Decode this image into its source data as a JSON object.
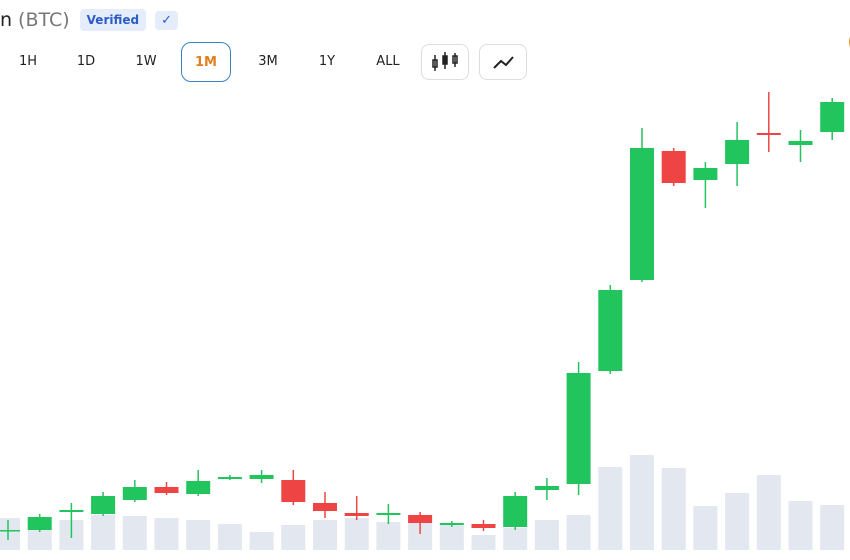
{
  "header": {
    "title": "n",
    "ticker": "(BTC)",
    "badge": "Verified",
    "check": "✓"
  },
  "timeframes": {
    "options": [
      "1H",
      "1D",
      "1W",
      "1M",
      "3M",
      "1Y",
      "ALL"
    ],
    "active": 3
  },
  "chart_data": {
    "type": "candlestick",
    "open": [
      30,
      30,
      48,
      46,
      60,
      73,
      66,
      81,
      81,
      80,
      57,
      47,
      45,
      45,
      35,
      36,
      33,
      70,
      76,
      189,
      280,
      409,
      380,
      396,
      427,
      415,
      428
    ],
    "close": [
      30,
      43,
      50,
      64,
      73,
      67,
      79,
      83,
      85,
      58,
      49,
      44,
      47,
      37,
      37,
      32,
      64,
      74,
      187,
      270,
      412,
      377,
      392,
      420,
      425,
      419,
      458
    ],
    "high": [
      40,
      46,
      57,
      68,
      80,
      78,
      90,
      85,
      90,
      90,
      68,
      64,
      56,
      48,
      39,
      40,
      68,
      82,
      198,
      275,
      432,
      412,
      398,
      438,
      468,
      430,
      462
    ],
    "low": [
      20,
      28,
      22,
      44,
      58,
      65,
      64,
      80,
      77,
      55,
      42,
      40,
      36,
      26,
      33,
      29,
      30,
      60,
      65,
      186,
      278,
      374,
      352,
      374,
      408,
      398,
      420
    ],
    "volume": [
      32,
      22,
      30,
      35,
      34,
      32,
      30,
      26,
      18,
      25,
      30,
      32,
      28,
      34,
      25,
      15,
      22,
      30,
      35,
      83,
      95,
      82,
      44,
      57,
      75,
      49,
      45
    ],
    "ylim": [
      0,
      560
    ],
    "up_color": "#22c45e",
    "down_color": "#ef4444",
    "volume_color": "#e2e7f0"
  }
}
